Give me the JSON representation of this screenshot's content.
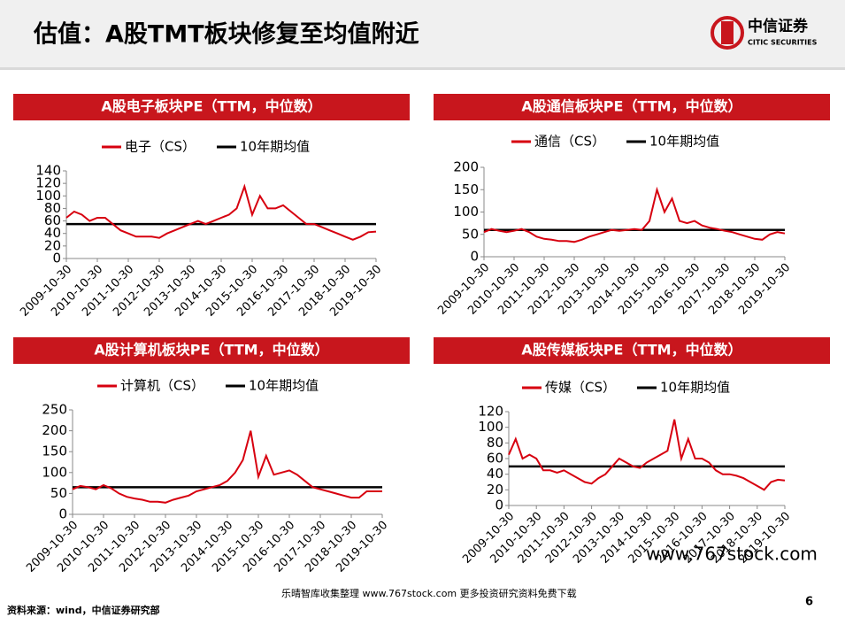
{
  "header": {
    "title": "估值：A股TMT板块修复至均值附近",
    "logo_cn": "中信证券",
    "logo_en": "CITIC SECURITIES"
  },
  "footer": {
    "source": "资料来源：wind，中信证券研究部",
    "page": "6",
    "watermark": "乐晴智库收集整理 www.767stock.com 更多投资研究资料免费下载",
    "watermark2": "www.767stock.com"
  },
  "chart_data": [
    {
      "type": "line",
      "title": "A股电子板块PE（TTM，中位数）",
      "categories": [
        "2009-10-30",
        null,
        null,
        null,
        "2010-10-30",
        null,
        null,
        null,
        "2011-10-30",
        null,
        null,
        null,
        "2012-10-30",
        null,
        null,
        null,
        "2013-10-30",
        null,
        null,
        null,
        "2014-10-30",
        null,
        null,
        null,
        "2015-10-30",
        null,
        null,
        null,
        "2016-10-30",
        null,
        null,
        null,
        "2017-10-30",
        null,
        null,
        null,
        "2018-10-30",
        null,
        null,
        null,
        "2019-10-30"
      ],
      "series": [
        {
          "name": "电子（CS）",
          "color": "#d7000f",
          "values": [
            65,
            75,
            70,
            60,
            65,
            65,
            55,
            45,
            40,
            35,
            35,
            35,
            33,
            40,
            45,
            50,
            55,
            60,
            55,
            60,
            65,
            70,
            80,
            115,
            70,
            100,
            80,
            80,
            85,
            75,
            65,
            55,
            55,
            50,
            45,
            40,
            35,
            30,
            35,
            42,
            43
          ]
        }
      ],
      "reference_line": {
        "name": "10年期均值",
        "color": "#000000",
        "value": 55
      },
      "ylim": [
        0,
        140
      ],
      "yticks": [
        0,
        20,
        40,
        60,
        80,
        100,
        120,
        140
      ]
    },
    {
      "type": "line",
      "title": "A股通信板块PE（TTM，中位数）",
      "categories": [
        "2009-10-30",
        null,
        null,
        null,
        "2010-10-30",
        null,
        null,
        null,
        "2011-10-30",
        null,
        null,
        null,
        "2012-10-30",
        null,
        null,
        null,
        "2013-10-30",
        null,
        null,
        null,
        "2014-10-30",
        null,
        null,
        null,
        "2015-10-30",
        null,
        null,
        null,
        "2016-10-30",
        null,
        null,
        null,
        "2017-10-30",
        null,
        null,
        null,
        "2018-10-30",
        null,
        null,
        null,
        "2019-10-30"
      ],
      "series": [
        {
          "name": "通信（CS）",
          "color": "#d7000f",
          "values": [
            55,
            62,
            58,
            55,
            58,
            62,
            55,
            45,
            40,
            38,
            35,
            35,
            33,
            38,
            45,
            50,
            55,
            60,
            58,
            60,
            62,
            60,
            80,
            150,
            100,
            130,
            80,
            75,
            80,
            70,
            65,
            62,
            58,
            55,
            50,
            45,
            40,
            38,
            50,
            55,
            52
          ]
        }
      ],
      "reference_line": {
        "name": "10年期均值",
        "color": "#000000",
        "value": 60
      },
      "ylim": [
        0,
        200
      ],
      "yticks": [
        0,
        50,
        100,
        150,
        200
      ]
    },
    {
      "type": "line",
      "title": "A股计算机板块PE（TTM，中位数）",
      "categories": [
        "2009-10-30",
        null,
        null,
        null,
        "2010-10-30",
        null,
        null,
        null,
        "2011-10-30",
        null,
        null,
        null,
        "2012-10-30",
        null,
        null,
        null,
        "2013-10-30",
        null,
        null,
        null,
        "2014-10-30",
        null,
        null,
        null,
        "2015-10-30",
        null,
        null,
        null,
        "2016-10-30",
        null,
        null,
        null,
        "2017-10-30",
        null,
        null,
        null,
        "2018-10-30",
        null,
        null,
        null,
        "2019-10-30"
      ],
      "series": [
        {
          "name": "计算机（CS）",
          "color": "#d7000f",
          "values": [
            60,
            68,
            65,
            60,
            70,
            62,
            50,
            42,
            38,
            35,
            30,
            30,
            28,
            35,
            40,
            45,
            55,
            60,
            65,
            70,
            80,
            100,
            130,
            200,
            90,
            140,
            95,
            100,
            105,
            95,
            80,
            65,
            60,
            55,
            50,
            45,
            40,
            40,
            55,
            55,
            55
          ]
        }
      ],
      "reference_line": {
        "name": "10年期均值",
        "color": "#000000",
        "value": 65
      },
      "ylim": [
        0,
        250
      ],
      "yticks": [
        0,
        50,
        100,
        150,
        200,
        250
      ]
    },
    {
      "type": "line",
      "title": "A股传媒板块PE（TTM，中位数）",
      "categories": [
        "2009-10-30",
        null,
        null,
        null,
        "2010-10-30",
        null,
        null,
        null,
        "2011-10-30",
        null,
        null,
        null,
        "2012-10-30",
        null,
        null,
        null,
        "2013-10-30",
        null,
        null,
        null,
        "2014-10-30",
        null,
        null,
        null,
        "2015-10-30",
        null,
        null,
        null,
        "2016-10-30",
        null,
        null,
        null,
        "2017-10-30",
        null,
        null,
        null,
        "2018-10-30",
        null,
        null,
        null,
        "2019-10-30"
      ],
      "series": [
        {
          "name": "传媒（CS）",
          "color": "#d7000f",
          "values": [
            65,
            85,
            60,
            65,
            60,
            45,
            45,
            42,
            45,
            40,
            35,
            30,
            28,
            35,
            40,
            50,
            60,
            55,
            50,
            48,
            55,
            60,
            65,
            70,
            110,
            60,
            85,
            60,
            60,
            55,
            45,
            40,
            40,
            38,
            35,
            30,
            25,
            20,
            30,
            33,
            32
          ]
        }
      ],
      "reference_line": {
        "name": "10年期均值",
        "color": "#000000",
        "value": 50
      },
      "ylim": [
        0,
        120
      ],
      "yticks": [
        0,
        20,
        40,
        60,
        80,
        100,
        120
      ]
    }
  ]
}
